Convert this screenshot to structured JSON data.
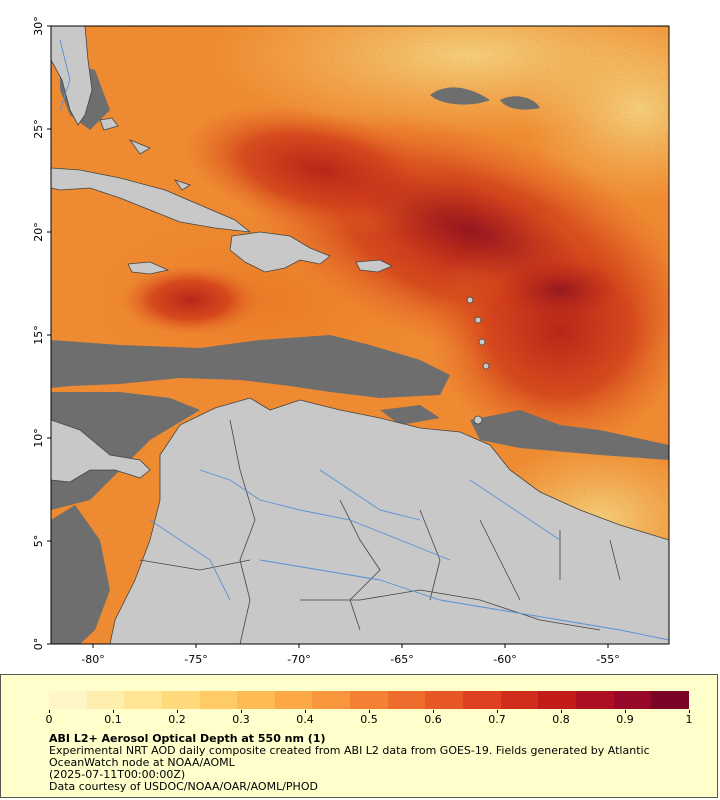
{
  "map": {
    "lon_ticks": [
      "-80°",
      "-75°",
      "-70°",
      "-65°",
      "-60°",
      "-55°"
    ],
    "lat_ticks": [
      "30°",
      "25°",
      "20°",
      "15°",
      "10°",
      "5°",
      "0°"
    ],
    "colors": {
      "land": "#c8c8c8",
      "no_data": "#6e6e6e",
      "border": "#444444",
      "river": "#5a8fd8"
    }
  },
  "legend": {
    "scale_ticks": [
      "0",
      "0.1",
      "0.2",
      "0.3",
      "0.4",
      "0.5",
      "0.6",
      "0.7",
      "0.8",
      "0.9",
      "1"
    ],
    "colormap": [
      "#fff6c8",
      "#ffefaf",
      "#ffe595",
      "#ffd97a",
      "#ffcb64",
      "#fdbb52",
      "#fca845",
      "#f9953c",
      "#f48133",
      "#ee6c2c",
      "#e65725",
      "#dd4120",
      "#d12d1c",
      "#c21b1a",
      "#ad0f22",
      "#950828",
      "#7a0326"
    ],
    "title": "ABI L2+ Aerosol Optical Depth at 550 nm (1)",
    "description": "Experimental NRT AOD daily composite created from ABI L2 data from GOES-19. Fields generated by Atlantic OceanWatch node at NOAA/AOML",
    "timestamp": "(2025-07-11T00:00:00Z)",
    "credit": "Data courtesy of USDOC/NOAA/OAR/AOML/PHOD"
  }
}
